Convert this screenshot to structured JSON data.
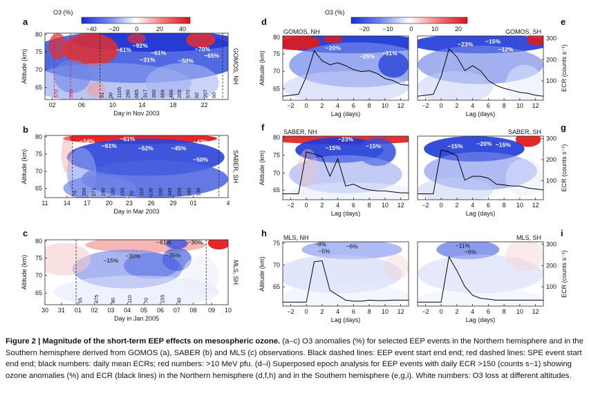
{
  "colorbar_left": {
    "label": "O3 (%)",
    "ticks": [
      "−40",
      "−20",
      "0",
      "20",
      "40"
    ]
  },
  "colorbar_right": {
    "label": "O3 (%)",
    "ticks": [
      "−20",
      "−10",
      "0",
      "10",
      "20"
    ]
  },
  "colors": {
    "negative": "#1f3fd6",
    "positive": "#e02020",
    "neutral": "#ffffff",
    "line": "#000000",
    "dashed_black": "#222222",
    "dashed_red": "#cc2222"
  },
  "panels": {
    "a": {
      "letter": "a",
      "title": "GOMOS, NH",
      "ylabel": "Altitude (km)",
      "xlabel": "Day in Nov 2003",
      "yticks": [
        "80",
        "75",
        "70",
        "65"
      ],
      "xticks": [
        "02",
        "06",
        "10",
        "14",
        "18",
        "22"
      ],
      "losses": [
        "−61%",
        "−92%",
        "−61%",
        "−31%",
        "−50%",
        "−70%",
        "−65%"
      ],
      "red_numbers": [
        "570",
        "353"
      ],
      "black_numbers": [
        "91",
        "90",
        "1105",
        "280",
        "685",
        "317",
        "350",
        "466",
        "486",
        "205",
        "570",
        "62",
        "207",
        "60"
      ]
    },
    "b": {
      "letter": "b",
      "title": "SABER, SH",
      "ylabel": "Altitude (km)",
      "xlabel": "Day in Mar 2003",
      "yticks": [
        "80",
        "75",
        "70",
        "65"
      ],
      "xticks": [
        "11",
        "14",
        "17",
        "20",
        "23",
        "26",
        "29",
        "01",
        "4"
      ],
      "losses": [
        "−34%",
        "−61%",
        "−61%",
        "−52%",
        "−45%",
        "−47%",
        "−50%"
      ],
      "black_numbers": [
        "70",
        "390",
        "271",
        "160",
        "190",
        "150",
        "70",
        "110",
        "130",
        "160",
        "345",
        "295",
        "160",
        "130"
      ]
    },
    "c": {
      "letter": "c",
      "title": "MLS, SH",
      "ylabel": "Altitude (km)",
      "xlabel": "Day in Jan 2005",
      "yticks": [
        "80",
        "75",
        "70",
        "65"
      ],
      "xticks": [
        "30",
        "31",
        "01",
        "02",
        "03",
        "04",
        "05",
        "06",
        "07",
        "08",
        "09",
        "10"
      ],
      "losses": [
        "−15%",
        "−30%",
        "−61%",
        "−30%",
        "−35%"
      ],
      "black_numbers": [
        "55",
        "475",
        "80",
        "110",
        "70",
        "155",
        "40"
      ]
    },
    "d": {
      "letter": "d",
      "title": "GOMOS, NH",
      "ylabel": "Altitude (km)",
      "xlabel": "Lag (days)",
      "yticks": [
        "80",
        "75",
        "70",
        "65"
      ],
      "xticks": [
        "−2",
        "0",
        "2",
        "4",
        "6",
        "8",
        "10",
        "12"
      ],
      "losses": [
        "−20%",
        "−25%",
        "−31%"
      ]
    },
    "e": {
      "letter": "e",
      "title": "GOMOS, SH",
      "ylabel": "ECR (counts s⁻¹)",
      "xlabel": "Lag (days)",
      "yticks": [
        "300",
        "200",
        "100"
      ],
      "xticks": [
        "−2",
        "0",
        "2",
        "4",
        "6",
        "8",
        "10",
        "12"
      ],
      "losses": [
        "−23%",
        "−15%",
        "−12%"
      ]
    },
    "f": {
      "letter": "f",
      "title": "SABER, NH",
      "ylabel": "Altitude (km)",
      "xlabel": "Lag (days)",
      "yticks": [
        "80",
        "75",
        "70",
        "65"
      ],
      "xticks": [
        "−2",
        "0",
        "2",
        "4",
        "6",
        "8",
        "10",
        "12"
      ],
      "losses": [
        "−23%",
        "−15%",
        "−15%"
      ]
    },
    "g": {
      "letter": "g",
      "title": "SABER, SH",
      "ylabel": "ECR (counts s⁻¹)",
      "xlabel": "Lag (days)",
      "yticks": [
        "300",
        "200",
        "100"
      ],
      "xticks": [
        "−2",
        "0",
        "2",
        "4",
        "6",
        "8",
        "10",
        "12"
      ],
      "losses": [
        "−15%",
        "−20%",
        "−15%"
      ]
    },
    "h": {
      "letter": "h",
      "title": "MLS, NH",
      "ylabel": "Altitude (km)",
      "xlabel": "Lag (days)",
      "yticks": [
        "75",
        "70",
        "65"
      ],
      "xticks": [
        "−2",
        "0",
        "2",
        "4",
        "6",
        "8",
        "10",
        "12"
      ],
      "losses": [
        "−8%",
        "−5%",
        "−6%"
      ]
    },
    "i": {
      "letter": "i",
      "title": "MLS, SH",
      "ylabel": "ECR (counts s⁻¹)",
      "xlabel": "Lag (days)",
      "yticks": [
        "300",
        "200",
        "100"
      ],
      "xticks": [
        "−2",
        "0",
        "2",
        "4",
        "6",
        "8",
        "10",
        "12"
      ],
      "losses": [
        "−11%",
        "−6%"
      ]
    }
  },
  "ecr_series": {
    "lag": [
      -3,
      -2,
      -1,
      0,
      1,
      2,
      3,
      4,
      5,
      6,
      7,
      8,
      9,
      10,
      11,
      12,
      13
    ],
    "d": [
      20,
      25,
      30,
      120,
      250,
      200,
      180,
      190,
      175,
      155,
      145,
      150,
      135,
      110,
      100,
      80,
      75
    ],
    "e": [
      20,
      25,
      30,
      120,
      260,
      220,
      150,
      175,
      150,
      100,
      75,
      60,
      50,
      40,
      35,
      25,
      20
    ],
    "f": [
      30,
      30,
      30,
      245,
      235,
      220,
      120,
      210,
      70,
      80,
      60,
      50,
      45,
      45,
      40,
      35,
      35
    ],
    "g": [
      30,
      30,
      30,
      255,
      245,
      225,
      100,
      120,
      120,
      110,
      80,
      75,
      70,
      70,
      60,
      55,
      50
    ],
    "h": [
      20,
      20,
      20,
      20,
      225,
      230,
      80,
      55,
      30,
      25,
      25,
      30,
      28,
      28,
      30,
      30,
      30
    ],
    "i": [
      20,
      20,
      20,
      20,
      250,
      180,
      100,
      55,
      40,
      35,
      30,
      30,
      30,
      30,
      30,
      30,
      30
    ]
  },
  "caption": {
    "title": "Figure 2 | Magnitude of the short-term EEP effects on mesospheric ozone.",
    "body": " (a–c) O3 anomalies (%) for selected EEP events in the Northern hemisphere and in the Southern hemisphere derived from GOMOS (a), SABER (b) and MLS (c) observations. Black dashed lines: EEP event start end end; red dashed lines: SPE event start end end; black numbers: daily mean ECRs; red numbers: >10 MeV pfu. (d–i) Superposed epoch analysis for EEP events with daily ECR >150 (counts s−1) showing ozone anomalies (%) and ECR (black lines) in the Northern hemisphere (d,f,h) and in the Southern hemisphere (e,g,i). White numbers: O3 loss at different altitudes."
  }
}
